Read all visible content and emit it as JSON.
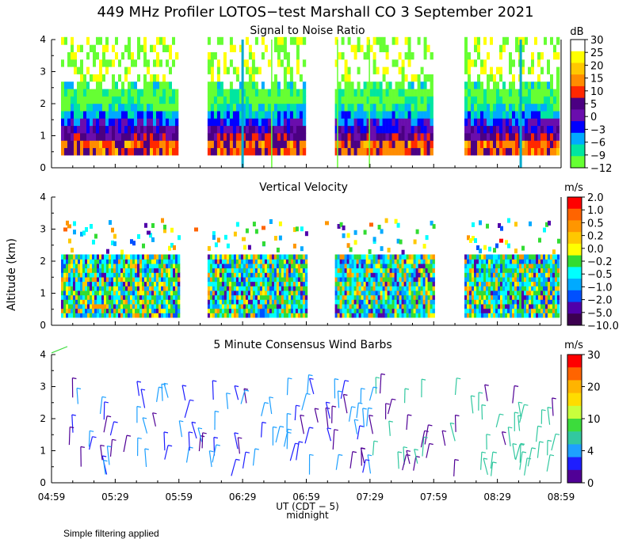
{
  "title": "449 MHz Profiler LOTOS−test Marshall CO   3 September 2021",
  "footer_note": "Simple filtering applied",
  "chart_data": [
    {
      "type": "heatmap",
      "title": "Signal to Noise Ratio",
      "ylabel": "",
      "ylim": [
        0,
        4
      ],
      "yticks": [
        "0",
        "1",
        "2",
        "3",
        "4"
      ],
      "colorbar": {
        "unit": "dB",
        "labels": [
          "30",
          "25",
          "20",
          "15",
          "10",
          "5",
          "0",
          "−3",
          "−6",
          "−9",
          "−12"
        ],
        "colors": [
          "#ffffff",
          "#ffff00",
          "#ffc800",
          "#ff8c00",
          "#ff2800",
          "#4b0082",
          "#6a0dad",
          "#0000ff",
          "#00aaff",
          "#00e6a0",
          "#66ff33"
        ]
      },
      "data_segments_ut": [
        [
          "04:59",
          "06:00"
        ],
        [
          "06:08",
          "07:00"
        ],
        [
          "07:08",
          "08:00"
        ],
        [
          "08:09",
          "08:59"
        ]
      ],
      "profile_by_altitude_km": [
        {
          "alt": 0.5,
          "snr_db": 12
        },
        {
          "alt": 1.0,
          "snr_db": 8
        },
        {
          "alt": 1.5,
          "snr_db": 3
        },
        {
          "alt": 2.0,
          "snr_db": -5
        },
        {
          "alt": 2.5,
          "snr_db": -10
        },
        {
          "alt": 3.0,
          "snr_db": -12
        }
      ]
    },
    {
      "type": "heatmap",
      "title": "Vertical Velocity",
      "ylabel": "Altitude (km)",
      "ylim": [
        0,
        4
      ],
      "yticks": [
        "0",
        "1",
        "2",
        "3",
        "4"
      ],
      "colorbar": {
        "unit": "m/s",
        "labels": [
          "2.0",
          "1.0",
          "0.5",
          "0.2",
          "0.0",
          "−0.2",
          "−0.5",
          "−1.0",
          "−2.0",
          "−5.0",
          "−10.0"
        ],
        "colors": [
          "#ff0000",
          "#ff6400",
          "#ff9600",
          "#ffc800",
          "#ffff00",
          "#32dc32",
          "#00ffff",
          "#00aaff",
          "#0050ff",
          "#5000aa",
          "#3c0050"
        ]
      },
      "velocity_range_ms": [
        -10.0,
        2.0
      ]
    },
    {
      "type": "scatter",
      "title": "5 Minute Consensus Wind Barbs",
      "ylabel": "",
      "ylim": [
        0,
        4
      ],
      "yticks": [
        "0",
        "1",
        "2",
        "3",
        "4"
      ],
      "xlabel": "UT   (CDT − 5)",
      "xlabel_note": "midnight",
      "xticks": [
        "04:59",
        "05:29",
        "05:59",
        "06:29",
        "06:59",
        "07:29",
        "07:59",
        "08:29",
        "08:59"
      ],
      "colorbar": {
        "unit": "m/s",
        "labels": [
          "30",
          "20",
          "10",
          "4",
          "0"
        ],
        "colors": [
          "#ff0000",
          "#ff6400",
          "#ffb400",
          "#ffdc00",
          "#c8ff3c",
          "#3cdc3c",
          "#32c8a0",
          "#1ea0ff",
          "#1e1eff",
          "#500096"
        ]
      },
      "barbs_summary": [
        {
          "time": "05:00",
          "alt_km": 4.0,
          "speed_ms": 12
        },
        {
          "time": "05:15",
          "alt_km": 2.7,
          "speed_ms": 2
        },
        {
          "time": "05:45",
          "alt_km": 1.8,
          "speed_ms": 5
        },
        {
          "time": "06:20",
          "alt_km": 2.3,
          "speed_ms": 6
        },
        {
          "time": "06:45",
          "alt_km": 0.8,
          "speed_ms": 2
        },
        {
          "time": "07:25",
          "alt_km": 1.2,
          "speed_ms": 2
        },
        {
          "time": "07:45",
          "alt_km": 2.2,
          "speed_ms": 7
        },
        {
          "time": "08:15",
          "alt_km": 2.0,
          "speed_ms": 9
        },
        {
          "time": "08:40",
          "alt_km": 1.6,
          "speed_ms": 9
        }
      ]
    }
  ]
}
